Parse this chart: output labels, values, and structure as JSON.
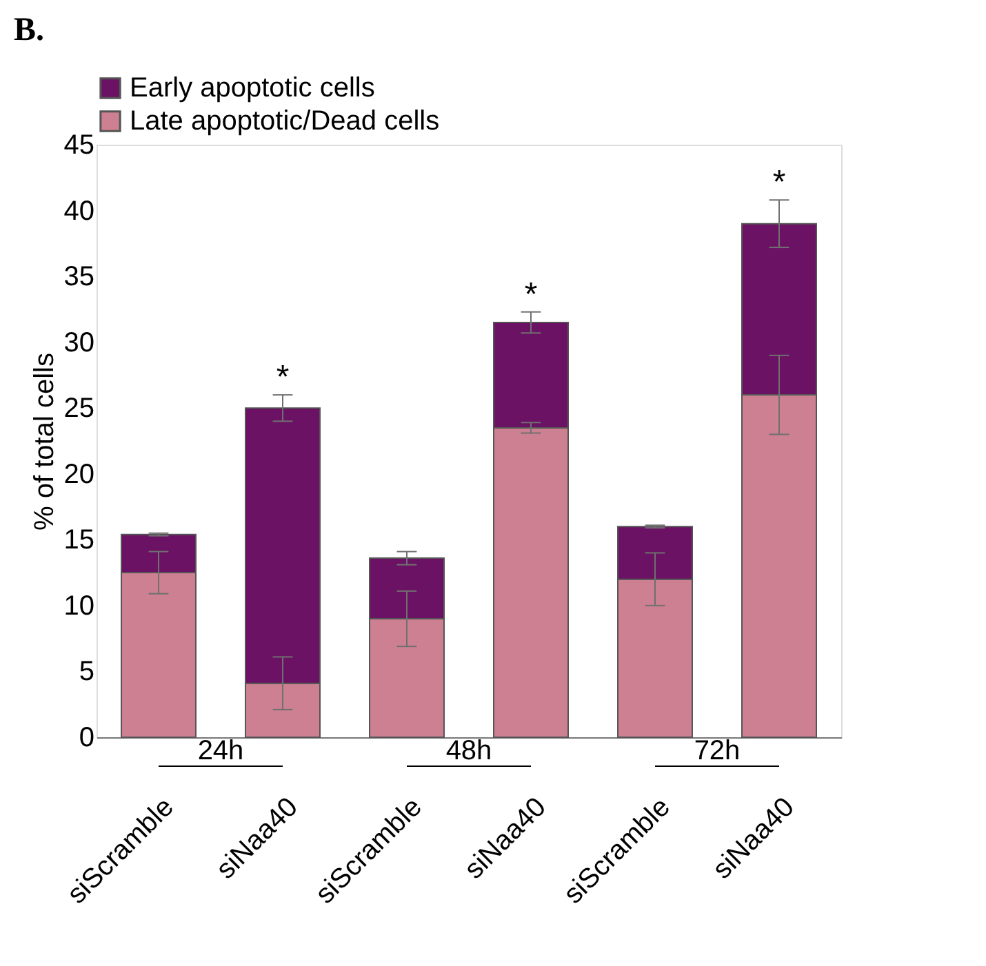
{
  "chart_data": {
    "type": "bar",
    "stacked": true,
    "ylabel": "% of total cells",
    "categories": [
      "siScramble",
      "siNaa40",
      "siScramble",
      "siNaa40",
      "siScramble",
      "siNaa40"
    ],
    "series": [
      {
        "name": "Late apoptotic/Dead cells",
        "color": "#cc8091",
        "values": [
          12.5,
          4.1,
          9.0,
          23.5,
          12.0,
          26.0
        ],
        "errors": [
          1.6,
          2.0,
          2.1,
          0.4,
          2.0,
          3.0
        ]
      },
      {
        "name": "Early apoptotic cells",
        "color": "#6b1264",
        "values": [
          2.9,
          20.9,
          4.6,
          8.0,
          4.0,
          13.0
        ],
        "errors": [
          0.1,
          1.0,
          0.5,
          0.8,
          0.1,
          1.8
        ],
        "value_labels": [
          null,
          "*",
          null,
          "*",
          null,
          "*"
        ]
      }
    ],
    "ylim": [
      0,
      45
    ],
    "yticks": [
      0,
      5,
      10,
      15,
      20,
      25,
      30,
      35,
      40,
      45
    ],
    "grid": false,
    "legend": "top",
    "annotations": [
      "B.",
      "24h",
      "48h",
      "72h"
    ]
  }
}
